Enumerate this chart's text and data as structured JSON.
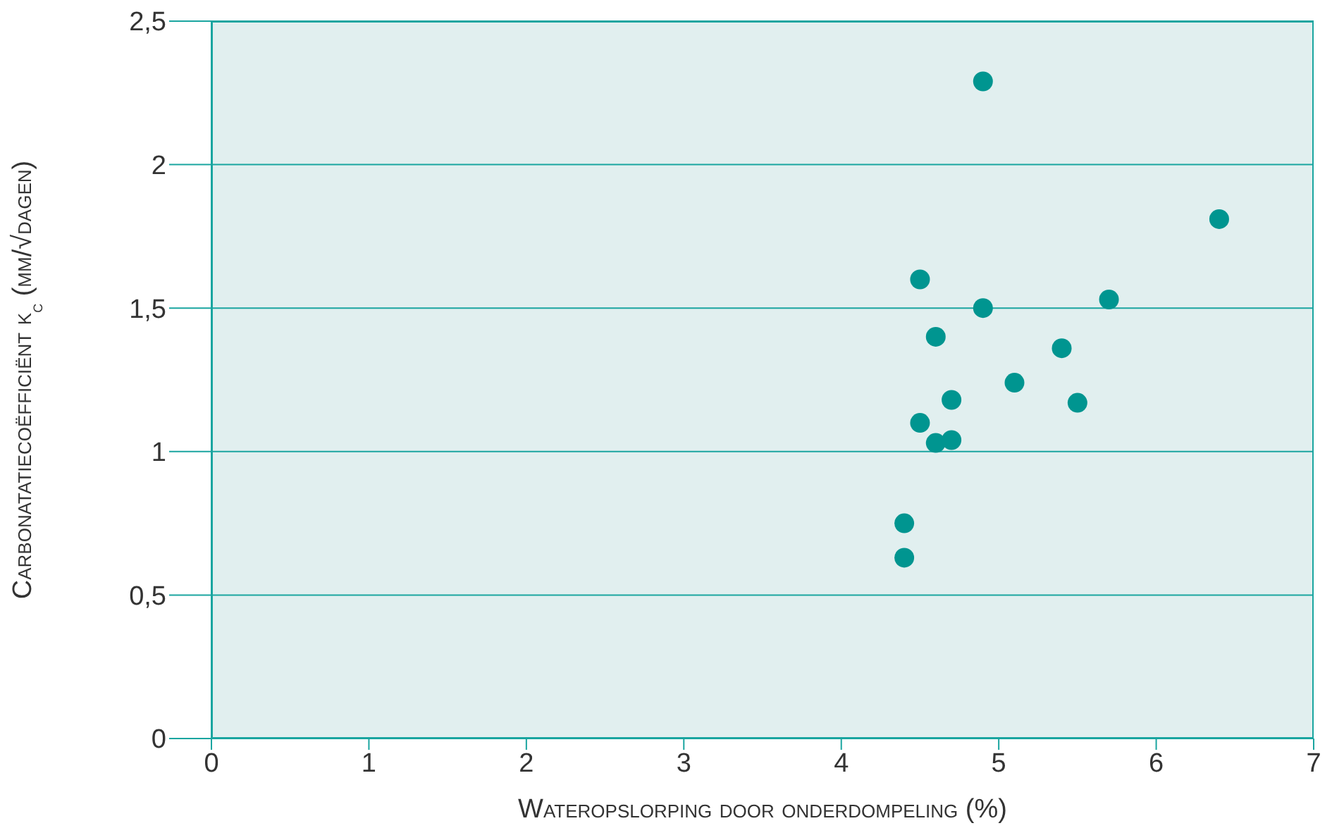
{
  "chart_data": {
    "type": "scatter",
    "xlabel": "Wateropslorping door onderdompeling (%)",
    "ylabel": "Carbonatatiecoëfficiënt k$_{c}$ (mm/√dagen)",
    "series": [
      {
        "color": "#009590",
        "x": [
          4.9,
          6.4,
          4.5,
          4.9,
          5.7,
          4.6,
          5.4,
          5.1,
          4.7,
          5.5,
          4.5,
          4.6,
          4.7,
          4.4,
          4.4
        ],
        "values": [
          2.29,
          1.81,
          1.6,
          1.5,
          1.53,
          1.4,
          1.36,
          1.24,
          1.18,
          1.17,
          1.1,
          1.03,
          1.04,
          0.75,
          0.63
        ]
      }
    ],
    "xlim": [
      0,
      7
    ],
    "xticks": [
      0,
      1,
      2,
      3,
      4,
      5,
      6,
      7
    ],
    "ylim": [
      0,
      2.5
    ],
    "yticks": [
      0,
      {
        "value": 0.5,
        "label": "0,5"
      },
      1,
      {
        "value": 1.5,
        "label": "1,5"
      },
      2,
      {
        "value": 2.5,
        "label": "2,5"
      }
    ],
    "grid": "y",
    "marker": "circle",
    "legend": false
  }
}
